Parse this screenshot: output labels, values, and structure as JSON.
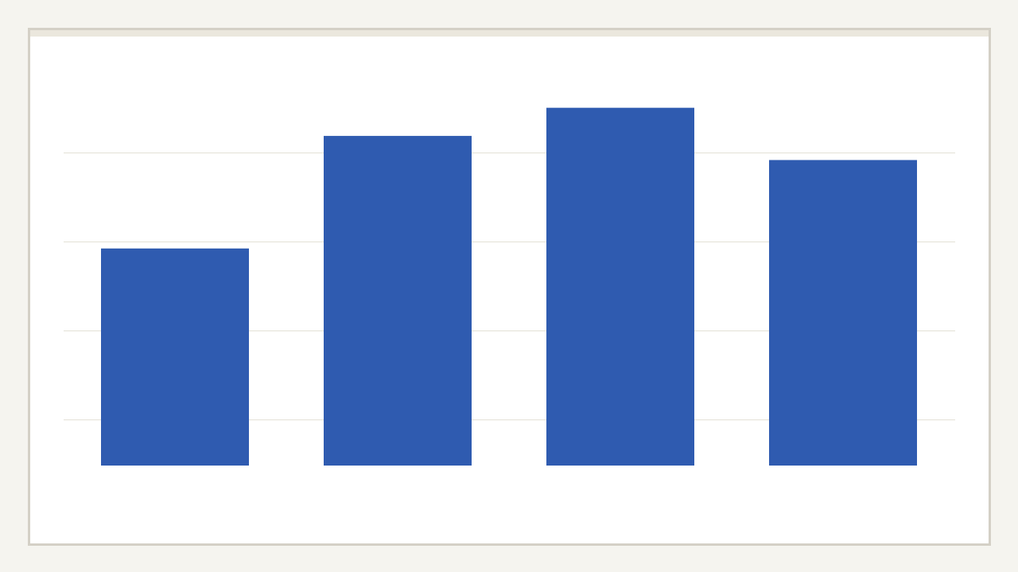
{
  "chart_data": {
    "type": "bar",
    "categories": [
      "",
      "",
      "",
      ""
    ],
    "values": [
      54,
      82,
      89,
      76
    ],
    "gridlines": [
      11.5,
      33.6,
      55.7,
      77.9
    ],
    "ylim": [
      0,
      100
    ],
    "title": "",
    "xlabel": "",
    "ylabel": "",
    "grid": true,
    "colors": {
      "bar": "#2f5bb0",
      "grid": "#e3e1d6",
      "frame": "#d4d0c6",
      "background": "#f5f4ef"
    }
  }
}
